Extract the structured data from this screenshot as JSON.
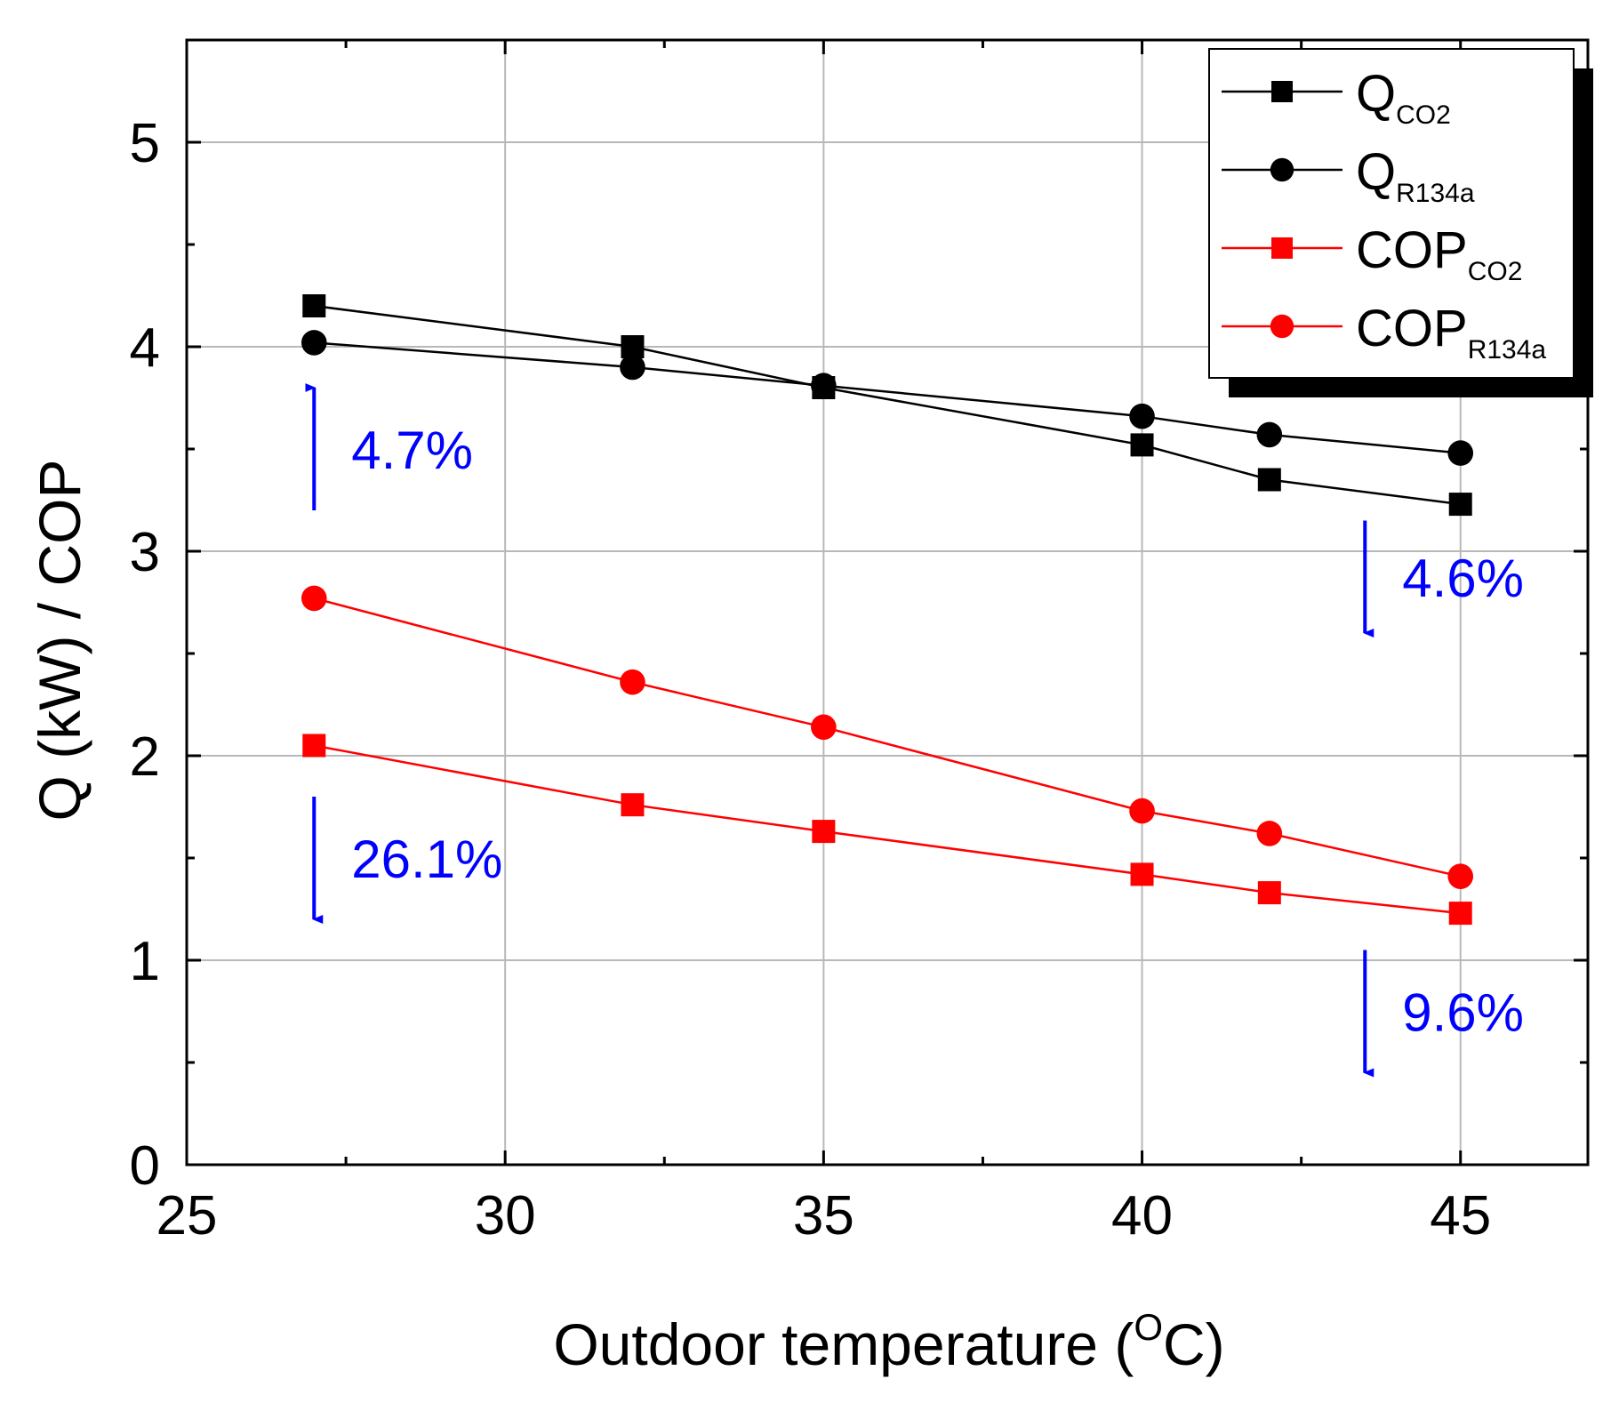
{
  "chart_data": {
    "type": "line",
    "title": "",
    "xlabel": "Outdoor temperature (",
    "xlabel_sup": "O",
    "xlabel_end": "C)",
    "ylabel": "Q (kW) / COP",
    "xlim": [
      25,
      47
    ],
    "ylim": [
      0,
      5.5
    ],
    "x_ticks": [
      25,
      30,
      35,
      40,
      45
    ],
    "y_ticks": [
      0,
      1,
      2,
      3,
      4,
      5
    ],
    "grid": true,
    "legend_position": "top-right",
    "series": [
      {
        "name": "Q",
        "sub": "CO2",
        "marker": "square",
        "color": "#000000",
        "x": [
          27,
          32,
          35,
          40,
          42,
          45
        ],
        "y": [
          4.2,
          4.0,
          3.8,
          3.52,
          3.35,
          3.23
        ]
      },
      {
        "name": "Q",
        "sub": "R134a",
        "marker": "circle",
        "color": "#000000",
        "x": [
          27,
          32,
          35,
          40,
          42,
          45
        ],
        "y": [
          4.02,
          3.9,
          3.81,
          3.66,
          3.57,
          3.48
        ]
      },
      {
        "name": "COP",
        "sub": "CO2",
        "marker": "square",
        "color": "#ff0000",
        "x": [
          27,
          32,
          35,
          40,
          42,
          45
        ],
        "y": [
          2.05,
          1.76,
          1.63,
          1.42,
          1.33,
          1.23
        ]
      },
      {
        "name": "COP",
        "sub": "R134a",
        "marker": "circle",
        "color": "#ff0000",
        "x": [
          27,
          32,
          35,
          40,
          42,
          45
        ],
        "y": [
          2.77,
          2.36,
          2.14,
          1.73,
          1.62,
          1.41
        ]
      }
    ],
    "annotations": [
      {
        "text": "4.7%",
        "direction": "up",
        "x": 27,
        "y_from": 3.2,
        "y_to": 3.8
      },
      {
        "text": "4.6%",
        "direction": "down",
        "x": 43.5,
        "y_from": 3.15,
        "y_to": 2.6
      },
      {
        "text": "26.1%",
        "direction": "down",
        "x": 27,
        "y_from": 1.8,
        "y_to": 1.2
      },
      {
        "text": "9.6%",
        "direction": "down",
        "x": 43.5,
        "y_from": 1.05,
        "y_to": 0.45
      }
    ],
    "annotation_color": "#0000ff"
  }
}
